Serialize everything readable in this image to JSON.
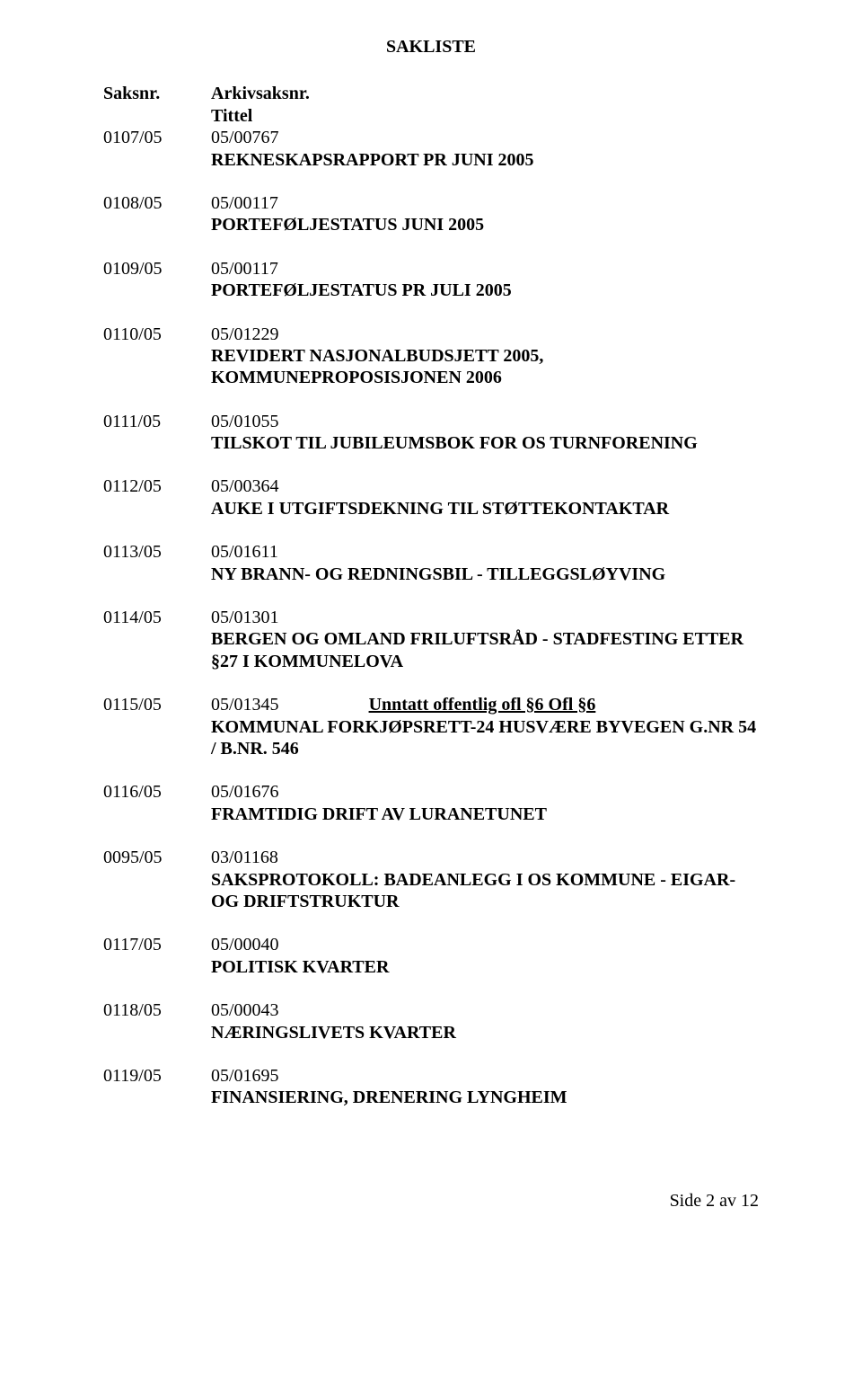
{
  "title": "SAKLISTE",
  "header": {
    "left": "Saksnr.",
    "right_top": "Arkivsaksnr.",
    "right_bottom": "Tittel"
  },
  "entries": [
    {
      "saksnr": "0107/05",
      "arkiv": "05/00767",
      "desc": "REKNESKAPSRAPPORT PR JUNI 2005"
    },
    {
      "saksnr": "0108/05",
      "arkiv": "05/00117",
      "desc": "PORTEFØLJESTATUS JUNI 2005"
    },
    {
      "saksnr": "0109/05",
      "arkiv": "05/00117",
      "desc": "PORTEFØLJESTATUS PR JULI 2005"
    },
    {
      "saksnr": "0110/05",
      "arkiv": "05/01229",
      "desc": "REVIDERT NASJONALBUDSJETT 2005, KOMMUNEPROPOSISJONEN 2006"
    },
    {
      "saksnr": "0111/05",
      "arkiv": "05/01055",
      "desc": "TILSKOT TIL JUBILEUMSBOK FOR OS TURNFORENING"
    },
    {
      "saksnr": "0112/05",
      "arkiv": "05/00364",
      "desc": "AUKE I UTGIFTSDEKNING TIL STØTTEKONTAKTAR"
    },
    {
      "saksnr": "0113/05",
      "arkiv": "05/01611",
      "desc": "NY BRANN- OG REDNINGSBIL - TILLEGGSLØYVING"
    },
    {
      "saksnr": "0114/05",
      "arkiv": "05/01301",
      "desc": "BERGEN OG OMLAND FRILUFTSRÅD - STADFESTING ETTER §27 I KOMMUNELOVA"
    },
    {
      "saksnr": "0115/05",
      "arkiv": "05/01345",
      "unntatt": "Unntatt offentlig ofl §6 Ofl §6",
      "desc": "KOMMUNAL FORKJØPSRETT-24 HUSVÆRE BYVEGEN G.NR 54 / B.NR. 546"
    },
    {
      "saksnr": "0116/05",
      "arkiv": "05/01676",
      "desc": "FRAMTIDIG DRIFT AV LURANETUNET"
    },
    {
      "saksnr": "0095/05",
      "arkiv": "03/01168",
      "desc": "SAKSPROTOKOLL: BADEANLEGG I OS KOMMUNE - EIGAR- OG DRIFTSTRUKTUR"
    },
    {
      "saksnr": "0117/05",
      "arkiv": "05/00040",
      "desc": "POLITISK KVARTER"
    },
    {
      "saksnr": "0118/05",
      "arkiv": "05/00043",
      "desc": "NÆRINGSLIVETS KVARTER"
    },
    {
      "saksnr": "0119/05",
      "arkiv": "05/01695",
      "desc": "FINANSIERING, DRENERING LYNGHEIM"
    }
  ],
  "footer": "Side 2 av 12"
}
